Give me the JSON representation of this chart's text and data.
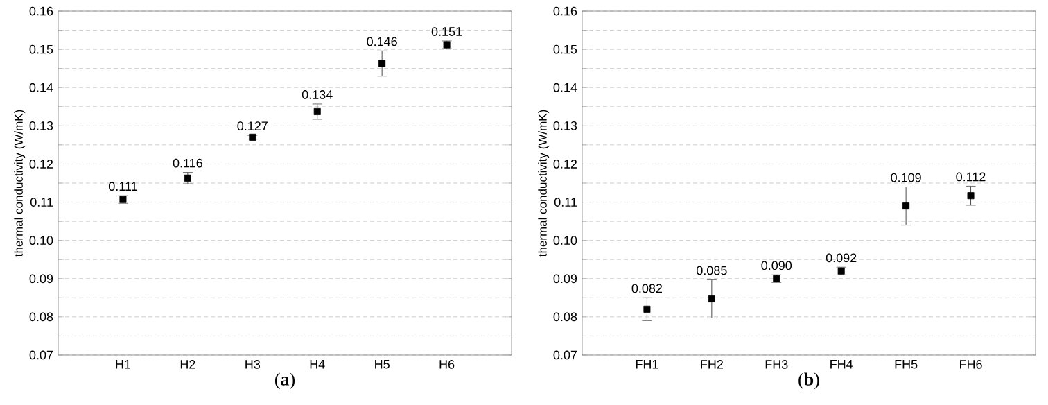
{
  "chart_data": [
    {
      "type": "scatter",
      "xlabel": "(**a**)",
      "ylabel": "thermal conductivity (W/mK)",
      "categories": [
        "H1",
        "H2",
        "H3",
        "H4",
        "H5",
        "H6"
      ],
      "values": [
        0.1107,
        0.1163,
        0.127,
        0.1337,
        0.1463,
        0.1512
      ],
      "errors": [
        0.001,
        0.0015,
        0.0005,
        0.002,
        0.0033,
        0.001
      ],
      "value_labels": [
        "0.111",
        "0.116",
        "0.127",
        "0.134",
        "0.146",
        "0.151"
      ],
      "color": "#000000",
      "marker": "square",
      "grid": "y",
      "ylim": [
        0.07,
        0.16
      ],
      "yticks": [
        0.07,
        {
          "value": 0.075,
          "label": null
        },
        0.08,
        {
          "value": 0.085,
          "label": null
        },
        0.09,
        {
          "value": 0.095,
          "label": null
        },
        {
          "value": 0.1,
          "label": "0.10"
        },
        {
          "value": 0.105,
          "label": null
        },
        0.11,
        {
          "value": 0.115,
          "label": null
        },
        0.12,
        {
          "value": 0.125,
          "label": null
        },
        0.13,
        {
          "value": 0.135,
          "label": null
        },
        0.14,
        {
          "value": 0.145,
          "label": null
        },
        0.15,
        {
          "value": 0.155,
          "label": null
        },
        0.16
      ]
    },
    {
      "type": "scatter",
      "xlabel": "(**b**)",
      "ylabel": "thermal conductivity (W/mK)",
      "categories": [
        "FH1",
        "FH2",
        "FH3",
        "FH4",
        "FH5",
        "FH6"
      ],
      "values": [
        0.082,
        0.0847,
        0.09,
        0.092,
        0.109,
        0.1117
      ],
      "errors": [
        0.003,
        0.005,
        0.001,
        0.001,
        0.005,
        0.0025
      ],
      "value_labels": [
        "0.082",
        "0.085",
        "0.090",
        "0.092",
        "0.109",
        "0.112"
      ],
      "color": "#000000",
      "marker": "square",
      "grid": "y",
      "ylim": [
        0.07,
        0.16
      ],
      "yticks": [
        0.07,
        {
          "value": 0.075,
          "label": null
        },
        0.08,
        {
          "value": 0.085,
          "label": null
        },
        0.09,
        {
          "value": 0.095,
          "label": null
        },
        {
          "value": 0.1,
          "label": "0.10"
        },
        {
          "value": 0.105,
          "label": null
        },
        0.11,
        {
          "value": 0.115,
          "label": null
        },
        0.12,
        {
          "value": 0.125,
          "label": null
        },
        0.13,
        {
          "value": 0.135,
          "label": null
        },
        0.14,
        {
          "value": 0.145,
          "label": null
        },
        0.15,
        {
          "value": 0.155,
          "label": null
        },
        0.16
      ]
    }
  ]
}
